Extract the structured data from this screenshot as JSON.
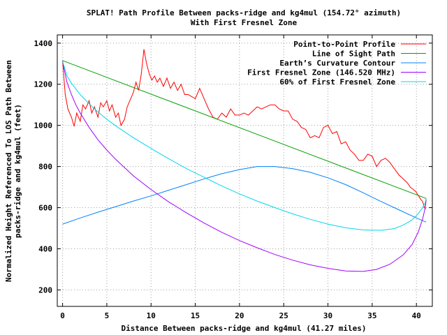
{
  "chart_data": {
    "type": "line",
    "title": "SPLAT! Path Profile Between packs-ridge and kg4mul (154.72° azimuth)",
    "subtitle": "With First Fresnel Zone",
    "xlabel": "Distance Between packs-ridge and kg4mul (41.27 miles)",
    "ylabel_line1": "Normalized Height Referenced To LOS Path Between",
    "ylabel_line2": "packs-ridge and kg4mul (feet)",
    "xlim": [
      -0.6,
      41.8
    ],
    "ylim": [
      120,
      1440
    ],
    "xticks": [
      0,
      5,
      10,
      15,
      20,
      25,
      30,
      35,
      40
    ],
    "xtick_labels": [
      "0",
      "5",
      "10",
      "15",
      "20",
      "25",
      "30",
      "35",
      "40"
    ],
    "yticks": [
      200,
      400,
      600,
      800,
      1000,
      1200,
      1400
    ],
    "ytick_labels": [
      "200",
      "400",
      "600",
      "800",
      "1000",
      "1200",
      "1400"
    ],
    "grid": true,
    "legend_position": "top-right",
    "series": [
      {
        "name": "Point-to-Point Profile",
        "color": "#ff0000",
        "x": [
          0,
          0.3,
          0.6,
          1.0,
          1.3,
          1.6,
          2.0,
          2.3,
          2.6,
          3.0,
          3.3,
          3.6,
          4.0,
          4.3,
          4.6,
          5.0,
          5.3,
          5.6,
          6.0,
          6.3,
          6.6,
          7.0,
          7.3,
          7.6,
          8.0,
          8.3,
          8.6,
          8.9,
          9.2,
          9.5,
          9.8,
          10.1,
          10.4,
          10.7,
          11.0,
          11.4,
          11.8,
          12.2,
          12.6,
          13.0,
          13.4,
          13.8,
          14.2,
          14.6,
          15.0,
          15.5,
          16.0,
          16.5,
          17.0,
          17.5,
          18.0,
          18.5,
          19.0,
          19.5,
          20.0,
          20.5,
          21.0,
          21.5,
          22.0,
          22.5,
          23.0,
          23.5,
          24.0,
          24.5,
          25.0,
          25.5,
          26.0,
          26.5,
          27.0,
          27.5,
          28.0,
          28.5,
          29.0,
          29.5,
          30.0,
          30.5,
          31.0,
          31.5,
          32.0,
          32.5,
          33.0,
          33.5,
          34.0,
          34.5,
          35.0,
          35.5,
          36.0,
          36.5,
          37.0,
          37.5,
          38.0,
          38.5,
          39.0,
          39.3,
          39.6,
          39.9,
          40.2,
          40.5,
          40.7,
          40.9,
          41.0,
          41.1
        ],
        "y": [
          1315,
          1150,
          1080,
          1040,
          995,
          1060,
          1020,
          1100,
          1080,
          1120,
          1060,
          1090,
          1040,
          1110,
          1090,
          1120,
          1070,
          1100,
          1040,
          1060,
          1000,
          1030,
          1090,
          1120,
          1160,
          1210,
          1170,
          1250,
          1370,
          1300,
          1250,
          1220,
          1240,
          1210,
          1230,
          1190,
          1230,
          1180,
          1210,
          1170,
          1200,
          1150,
          1150,
          1140,
          1130,
          1180,
          1130,
          1080,
          1040,
          1030,
          1060,
          1040,
          1080,
          1050,
          1050,
          1060,
          1050,
          1070,
          1090,
          1080,
          1090,
          1100,
          1100,
          1080,
          1070,
          1070,
          1030,
          1020,
          990,
          980,
          940,
          950,
          940,
          990,
          1000,
          960,
          970,
          910,
          920,
          880,
          860,
          830,
          830,
          860,
          850,
          800,
          830,
          840,
          820,
          790,
          760,
          740,
          720,
          700,
          690,
          680,
          660,
          640,
          630,
          600,
          595,
          640
        ]
      },
      {
        "name": "Line of Sight Path",
        "color": "#00a000",
        "x": [
          0,
          41.1
        ],
        "y": [
          1315,
          645
        ]
      },
      {
        "name": "Earth’s Curvature Contour",
        "color": "#0080ff",
        "x": [
          0,
          2,
          4,
          6,
          8,
          10,
          12,
          14,
          16,
          18,
          20,
          22,
          24,
          26,
          28,
          30,
          32,
          34,
          36,
          38,
          40,
          41.1
        ],
        "y": [
          520,
          550,
          578,
          605,
          632,
          657,
          685,
          712,
          740,
          765,
          785,
          800,
          800,
          790,
          772,
          745,
          712,
          672,
          630,
          590,
          550,
          530
        ]
      },
      {
        "name": "First Fresnel Zone (146.520 MHz)",
        "color": "#a000ff",
        "x": [
          0,
          0.5,
          1.0,
          1.5,
          2.0,
          3.0,
          4.0,
          5.0,
          6.0,
          8.0,
          10.0,
          12.0,
          14.0,
          16.0,
          18.0,
          20.0,
          22.0,
          24.0,
          26.0,
          28.0,
          30.0,
          32.0,
          34.0,
          35.5,
          37.0,
          38.5,
          39.5,
          40.2,
          40.7,
          41.0,
          41.1
        ],
        "y": [
          1310,
          1210,
          1150,
          1100,
          1060,
          990,
          930,
          880,
          835,
          755,
          688,
          628,
          575,
          525,
          480,
          440,
          405,
          372,
          345,
          322,
          305,
          292,
          290,
          300,
          325,
          370,
          420,
          480,
          545,
          600,
          645
        ]
      },
      {
        "name": "60% of First Fresnel Zone",
        "color": "#00d8e8",
        "x": [
          0,
          0.5,
          1.0,
          2.0,
          3.0,
          4.0,
          5.0,
          6.0,
          8.0,
          10.0,
          12.0,
          14.0,
          16.0,
          18.0,
          20.0,
          22.0,
          24.0,
          26.0,
          28.0,
          30.0,
          32.0,
          34.0,
          36.0,
          37.5,
          38.5,
          39.5,
          40.2,
          40.7,
          41.0,
          41.1
        ],
        "y": [
          1312,
          1240,
          1205,
          1150,
          1105,
          1065,
          1030,
          998,
          940,
          888,
          838,
          790,
          748,
          705,
          667,
          632,
          600,
          570,
          543,
          520,
          502,
          492,
          490,
          498,
          515,
          540,
          570,
          600,
          625,
          645
        ]
      }
    ]
  }
}
